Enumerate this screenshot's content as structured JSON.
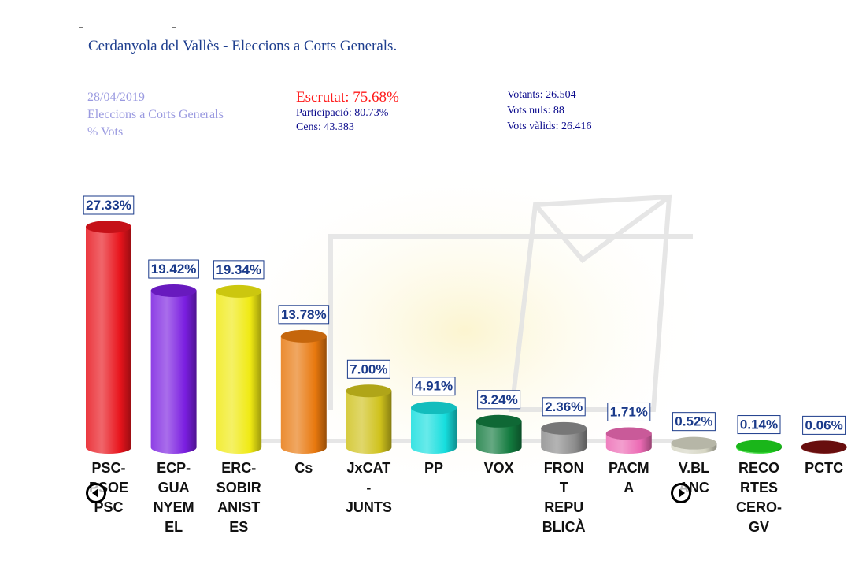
{
  "page": {
    "title": "Cerdanyola del Vallès - Eleccions a Corts Generals.",
    "date": "28/04/2019",
    "election": "Eleccions a Corts Generals",
    "metric": "% Vots",
    "escrutat": "Escrutat: 75.68%",
    "participacio": "Participació: 80.73%",
    "cens": "Cens: 43.383",
    "votants": "Votants: 26.504",
    "vots_nuls": "Vots nuls: 88",
    "vots_valids": "Vots vàlids: 26.416"
  },
  "nav": {
    "prev_icon": "arrow-left-icon",
    "next_icon": "arrow-right-icon"
  },
  "chart_data": {
    "type": "bar",
    "categories": [
      "PSC-PSOE PSC",
      "ECP-GUANYEM EL",
      "ERC-SOBIRANISTES",
      "Cs",
      "JxCAT-JUNTS",
      "PP",
      "VOX",
      "FRONT REPUBLICÀ",
      "PACMA",
      "V.BLANC",
      "RECORTES CERO-GV",
      "PCTC"
    ],
    "label_lines": [
      [
        "PSC-",
        "PSOE",
        "PSC"
      ],
      [
        "ECP-",
        "GUA",
        "NYEM",
        "EL"
      ],
      [
        "ERC-",
        "SOBIR",
        "ANIST",
        "ES"
      ],
      [
        "Cs"
      ],
      [
        "JxCAT",
        "-",
        "JUNTS"
      ],
      [
        "PP"
      ],
      [
        "VOX"
      ],
      [
        "FRON",
        "T",
        "REPU",
        "BLICÀ"
      ],
      [
        "PACM",
        "A"
      ],
      [
        "V.BL",
        "ANC"
      ],
      [
        "RECO",
        "RTES",
        "CERO-",
        "GV"
      ],
      [
        "PCTC"
      ]
    ],
    "values": [
      27.33,
      19.42,
      19.34,
      13.78,
      7.0,
      4.91,
      3.24,
      2.36,
      1.71,
      0.52,
      0.14,
      0.06
    ],
    "data_labels": [
      "27.33%",
      "19.42%",
      "19.34%",
      "13.78%",
      "7.00%",
      "4.91%",
      "3.24%",
      "2.36%",
      "1.71%",
      "0.52%",
      "0.14%",
      "0.06%"
    ],
    "colors": [
      "#e8141c",
      "#7a1ee0",
      "#f0ea12",
      "#e8780e",
      "#cfc21c",
      "#16dede",
      "#127a3e",
      "#8c8c8c",
      "#ec6ab4",
      "#d6d6c4",
      "#1ed61e",
      "#7a1010"
    ],
    "ylim": [
      0,
      27.33
    ]
  }
}
